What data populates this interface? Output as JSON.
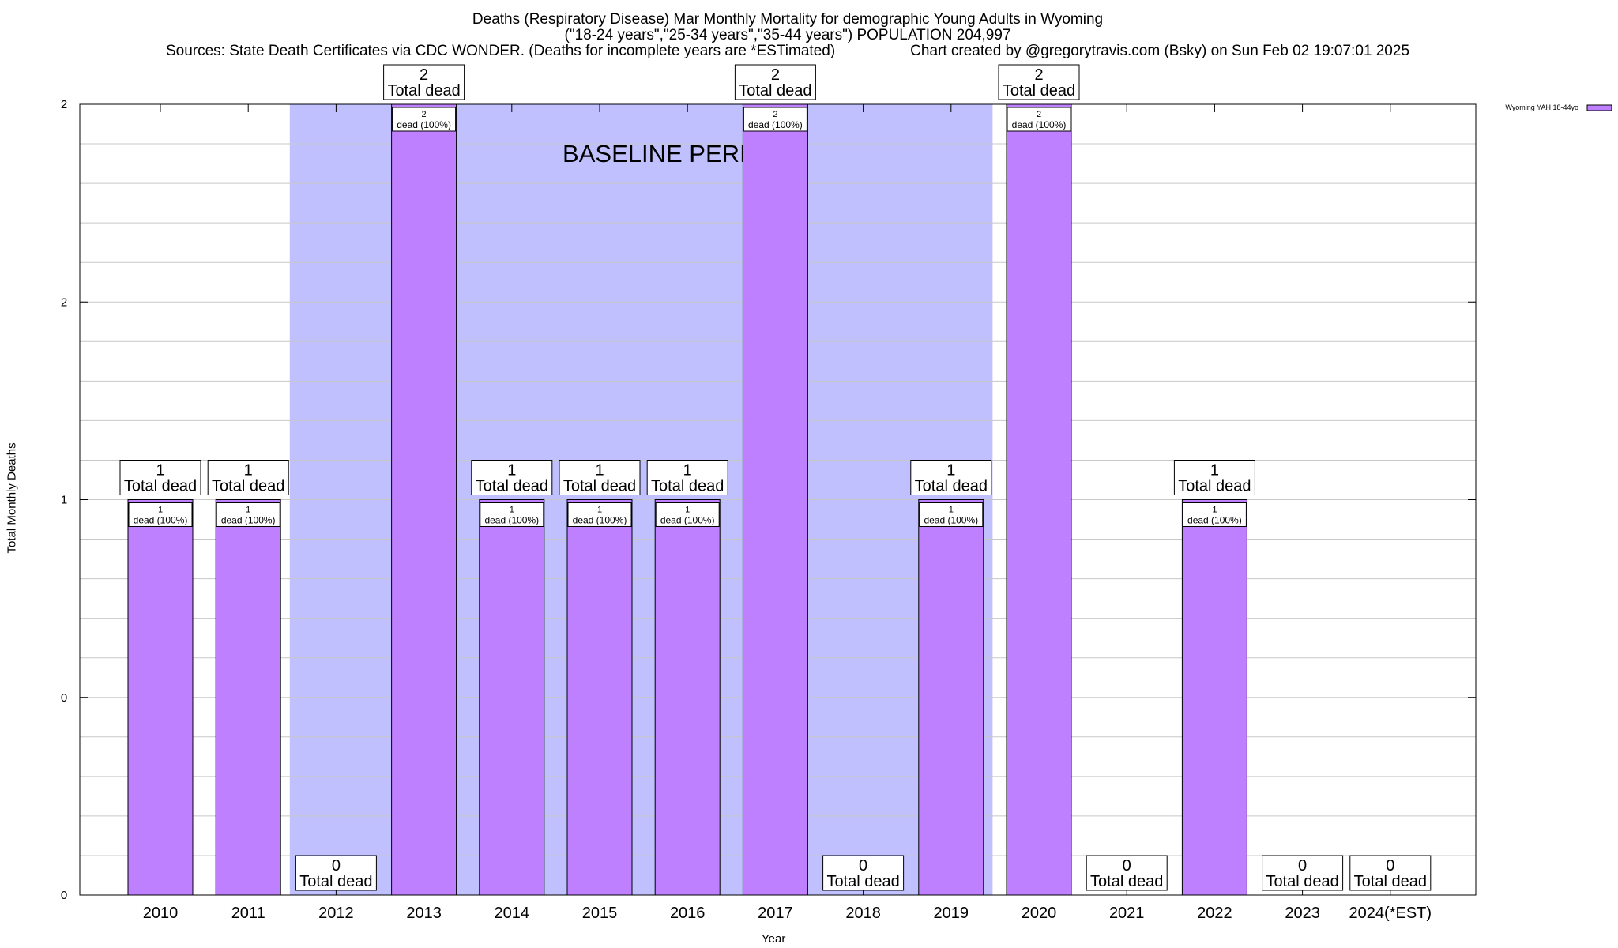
{
  "chart_data": {
    "type": "bar",
    "title": "Deaths (Respiratory Disease) Mar Monthly Mortality for demographic Young Adults in Wyoming",
    "subtitle": "(\"18-24 years\",\"25-34 years\",\"35-44 years\") POPULATION 204,997",
    "source_line": "Sources: State Death Certificates via CDC WONDER. (Deaths for incomplete years are *ESTimated)",
    "credit_line": "Chart created by @gregorytravis.com (Bsky) on Sun Feb 02 19:07:01 2025",
    "xlabel": "Year",
    "ylabel": "Total Monthly Deaths",
    "categories": [
      "2010",
      "2011",
      "2012",
      "2013",
      "2014",
      "2015",
      "2016",
      "2017",
      "2018",
      "2019",
      "2020",
      "2021",
      "2022",
      "2023",
      "2024(*EST)"
    ],
    "series": [
      {
        "name": "Wyoming YAH 18-44yo",
        "color": "#bf80ff",
        "values": [
          1,
          1,
          0,
          2,
          1,
          1,
          1,
          2,
          0,
          1,
          2,
          0,
          1,
          0,
          0
        ]
      }
    ],
    "total_labels": [
      "1\nTotal dead",
      "1\nTotal dead",
      "0\nTotal dead",
      "2\nTotal dead",
      "1\nTotal dead",
      "1\nTotal dead",
      "1\nTotal dead",
      "2\nTotal dead",
      "0\nTotal dead",
      "1\nTotal dead",
      "2\nTotal dead",
      "0\nTotal dead",
      "1\nTotal dead",
      "0\nTotal dead",
      "0\nTotal dead"
    ],
    "bar_labels": [
      "1\ndead (100%)",
      "1\ndead (100%)",
      "",
      "2\ndead (100%)",
      "1\ndead (100%)",
      "1\ndead (100%)",
      "1\ndead (100%)",
      "2\ndead (100%)",
      "",
      "1\ndead (100%)",
      "2\ndead (100%)",
      "",
      "1\ndead (100%)",
      "",
      ""
    ],
    "ylim": [
      0,
      2
    ],
    "yticks": [
      {
        "value": 0,
        "label": "0"
      },
      {
        "value": 0.5,
        "label": "0"
      },
      {
        "value": 1,
        "label": "1"
      },
      {
        "value": 1.5,
        "label": "2"
      },
      {
        "value": 2,
        "label": "2"
      }
    ],
    "baseline_period": {
      "label": "BASELINE PERIOD",
      "from": "2012",
      "to": "2019",
      "color": "#c0c0ff"
    },
    "grid": true,
    "legend": {
      "position": "top-right"
    }
  }
}
